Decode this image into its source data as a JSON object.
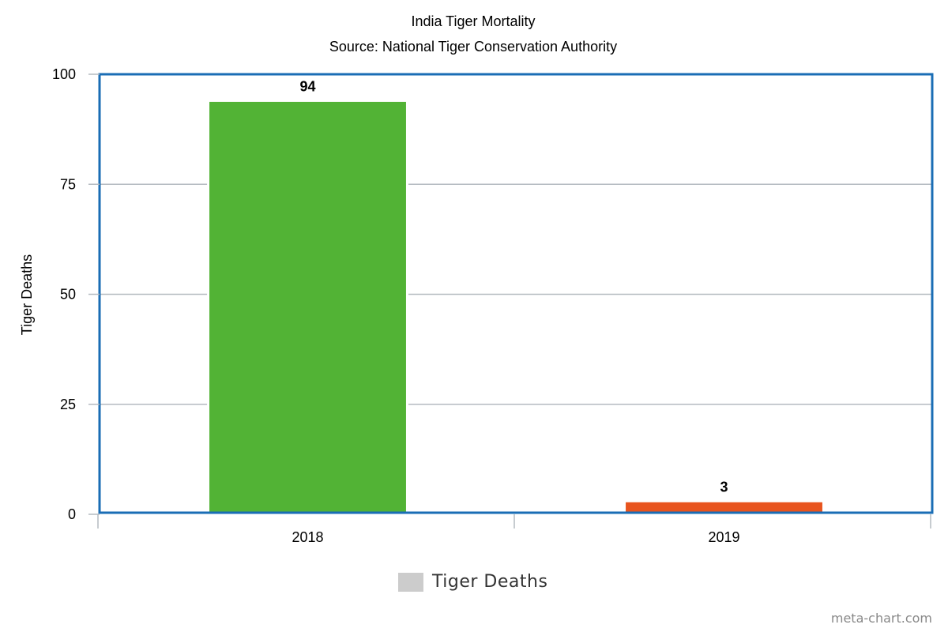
{
  "chart_data": {
    "type": "bar",
    "title": "India Tiger Mortality",
    "subtitle": "Source: National Tiger Conservation Authority",
    "categories": [
      "2018",
      "2019"
    ],
    "series": [
      {
        "name": "Tiger Deaths",
        "values": [
          94,
          3
        ],
        "colors": [
          "#52b335",
          "#e8541e"
        ]
      }
    ],
    "xlabel": "",
    "ylabel": "Tiger Deaths",
    "ylim": [
      0,
      100
    ],
    "yticks": [
      0,
      25,
      50,
      75,
      100
    ],
    "ytick_labels": [
      "0",
      "25",
      "50",
      "75",
      "100"
    ],
    "data_labels": [
      "94",
      "3"
    ],
    "legend": {
      "position": "bottom",
      "label": "Tiger Deaths",
      "color": "#cccccc"
    },
    "grid": true,
    "frame_color": "#1a6db5",
    "grid_color": "#b4bac0"
  },
  "watermark": "meta-chart.com"
}
